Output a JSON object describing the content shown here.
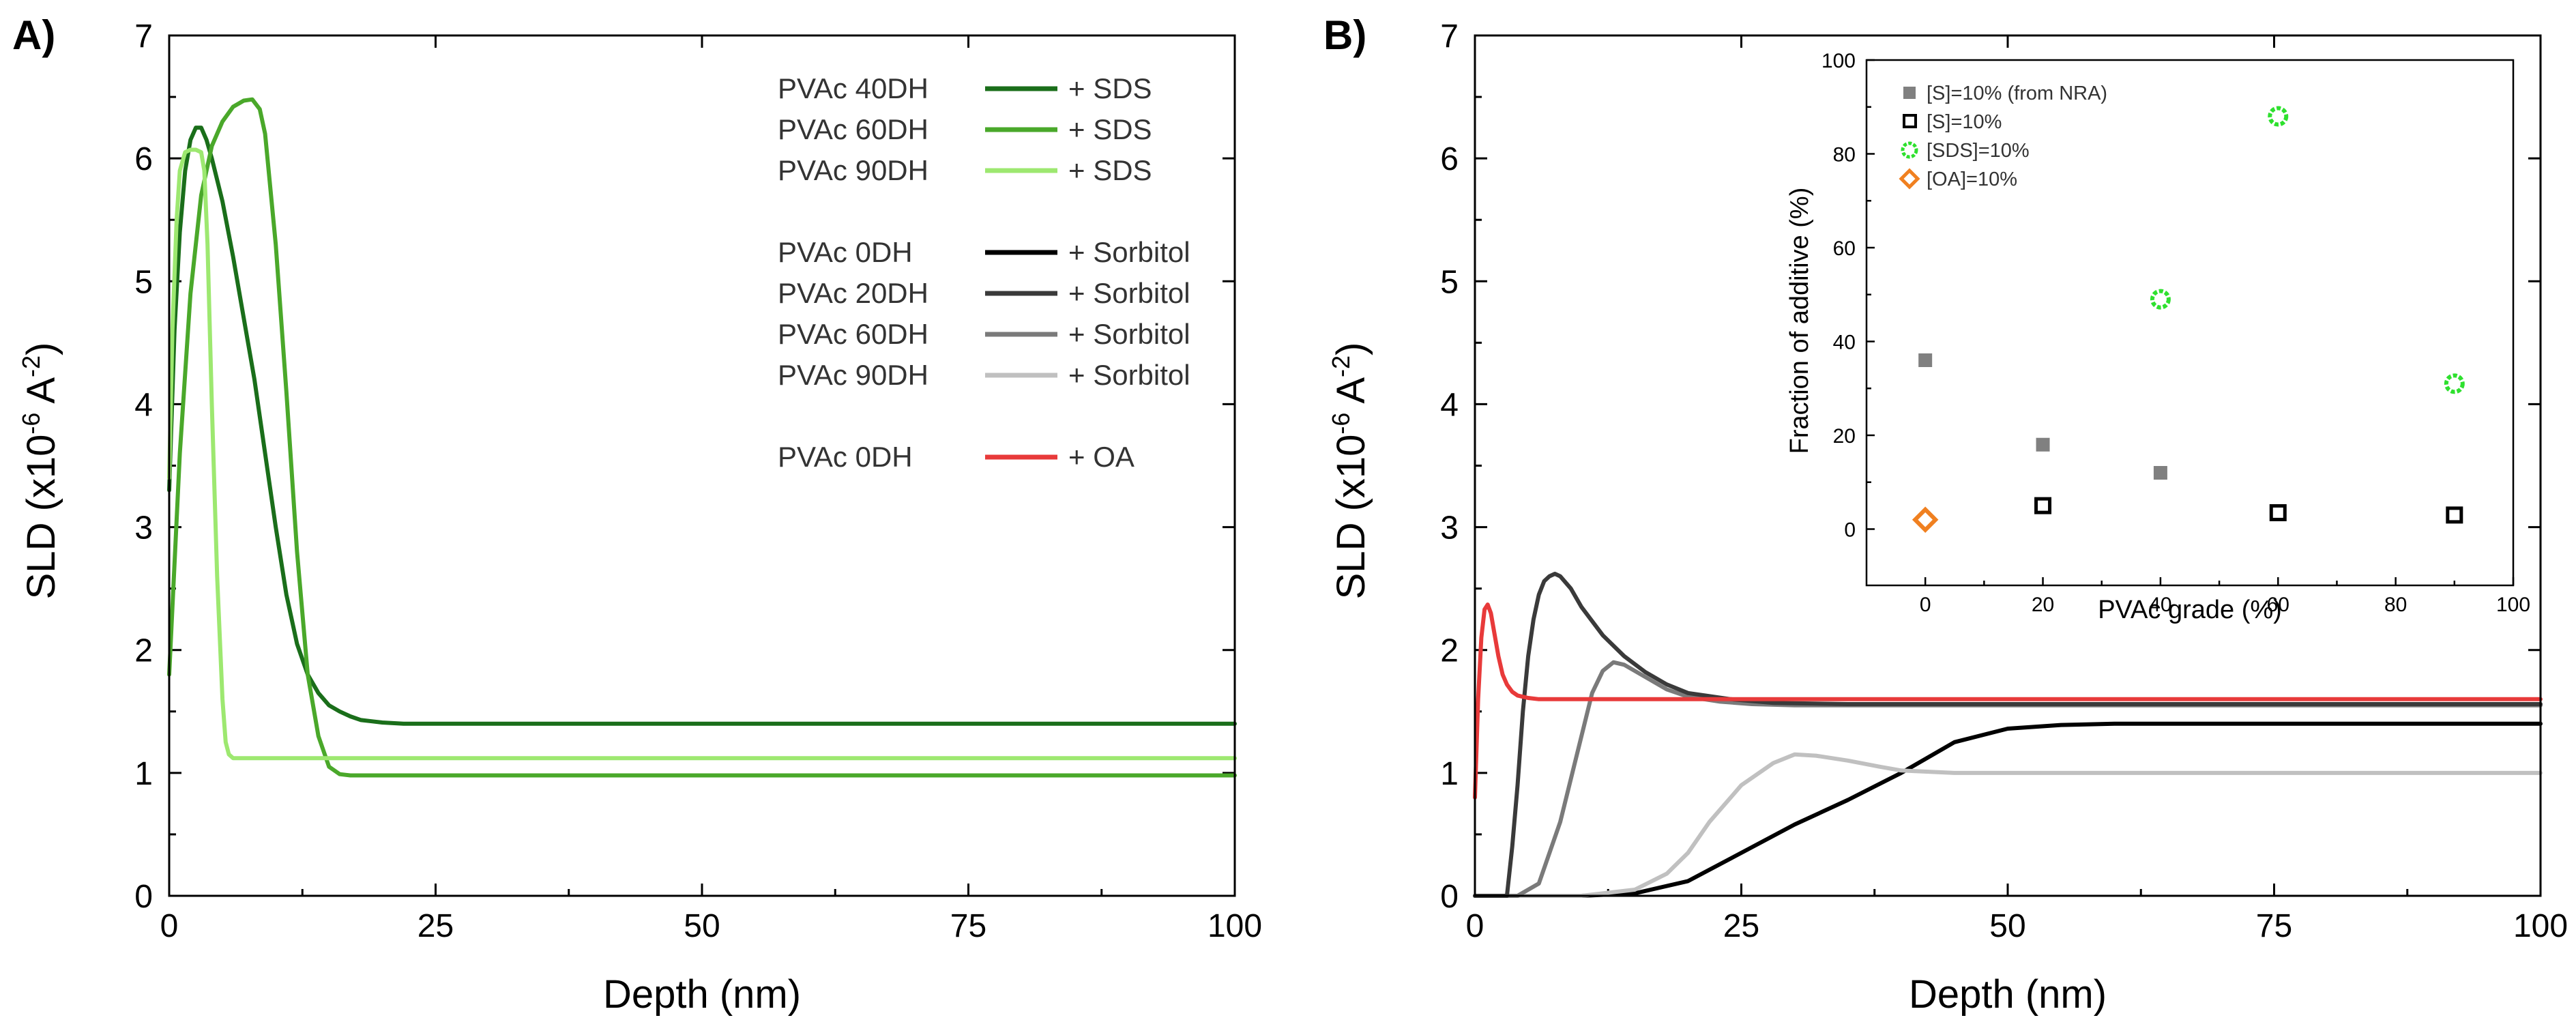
{
  "chart_data": [
    {
      "panel_label": "A)",
      "type": "line",
      "xlabel": "Depth (nm)",
      "ylabel_main": "SLD (x10",
      "ylabel_sup1": "-6",
      "ylabel_mid": " A",
      "ylabel_sup2": "-2",
      "ylabel_end": ")",
      "xlim": [
        0,
        100
      ],
      "ylim": [
        0,
        7
      ],
      "xticks": [
        0,
        25,
        50,
        75,
        100
      ],
      "yticks": [
        0,
        1,
        2,
        3,
        4,
        5,
        6,
        7
      ],
      "legend": [
        {
          "sample": "PVAc 40DH",
          "additive": "+ SDS",
          "color": "#1a6e1a"
        },
        {
          "sample": "PVAc 60DH",
          "additive": "+ SDS",
          "color": "#4aa82a"
        },
        {
          "sample": "PVAc 90DH",
          "additive": "+ SDS",
          "color": "#9de870"
        },
        {
          "sample": "PVAc 0DH",
          "additive": "+ Sorbitol",
          "color": "#000000"
        },
        {
          "sample": "PVAc 20DH",
          "additive": "+ Sorbitol",
          "color": "#3a3a3a"
        },
        {
          "sample": "PVAc 60DH",
          "additive": "+ Sorbitol",
          "color": "#7a7a7a"
        },
        {
          "sample": "PVAc 90DH",
          "additive": "+ Sorbitol",
          "color": "#c0c0c0"
        },
        {
          "sample": "PVAc 0DH",
          "additive": "+ OA",
          "color": "#e83a3a"
        }
      ],
      "series": [
        {
          "name": "PVAc 40DH + SDS",
          "color": "#1a6e1a",
          "x": [
            0,
            0.5,
            1,
            1.5,
            2,
            2.5,
            3,
            3.5,
            4,
            5,
            6,
            7,
            8,
            9,
            10,
            11,
            12,
            13,
            14,
            15,
            16,
            17,
            18,
            19,
            20,
            22,
            25,
            30,
            50,
            75,
            100
          ],
          "y": [
            3.3,
            4.6,
            5.4,
            5.9,
            6.15,
            6.25,
            6.25,
            6.15,
            6.0,
            5.65,
            5.2,
            4.7,
            4.2,
            3.6,
            3.0,
            2.45,
            2.05,
            1.8,
            1.65,
            1.55,
            1.5,
            1.46,
            1.43,
            1.42,
            1.41,
            1.4,
            1.4,
            1.4,
            1.4,
            1.4,
            1.4
          ]
        },
        {
          "name": "PVAc 60DH + SDS",
          "color": "#4aa82a",
          "x": [
            0,
            1,
            2,
            3,
            4,
            5,
            6,
            7,
            7.8,
            8.5,
            9,
            10,
            11,
            12,
            13,
            14,
            15,
            16,
            17,
            18,
            20,
            25,
            50,
            75,
            100
          ],
          "y": [
            1.8,
            3.6,
            4.9,
            5.7,
            6.1,
            6.3,
            6.42,
            6.47,
            6.48,
            6.4,
            6.2,
            5.3,
            4.1,
            2.8,
            1.8,
            1.3,
            1.05,
            0.99,
            0.98,
            0.98,
            0.98,
            0.98,
            0.98,
            0.98,
            0.98
          ]
        },
        {
          "name": "PVAc 90DH + SDS",
          "color": "#9de870",
          "x": [
            0,
            0.3,
            0.7,
            1,
            1.5,
            2,
            2.5,
            3,
            3.3,
            3.6,
            4,
            4.5,
            5,
            5.3,
            5.6,
            6,
            7,
            10,
            25,
            50,
            75,
            100
          ],
          "y": [
            3.4,
            4.6,
            5.5,
            5.9,
            6.05,
            6.07,
            6.07,
            6.05,
            5.9,
            5.3,
            4.0,
            2.6,
            1.6,
            1.25,
            1.15,
            1.12,
            1.12,
            1.12,
            1.12,
            1.12,
            1.12,
            1.12
          ]
        }
      ]
    },
    {
      "panel_label": "B)",
      "type": "line",
      "xlabel": "Depth (nm)",
      "ylabel_main": "SLD (x10",
      "ylabel_sup1": "-6",
      "ylabel_mid": " A",
      "ylabel_sup2": "-2",
      "ylabel_end": ")",
      "xlim": [
        0,
        100
      ],
      "ylim": [
        0,
        7
      ],
      "xticks": [
        0,
        25,
        50,
        75,
        100
      ],
      "yticks": [
        0,
        1,
        2,
        3,
        4,
        5,
        6,
        7
      ],
      "series": [
        {
          "name": "PVAc 0DH + Sorbitol",
          "color": "#000000",
          "x": [
            0,
            10,
            15,
            20,
            25,
            30,
            35,
            40,
            45,
            50,
            55,
            60,
            100
          ],
          "y": [
            0,
            0,
            0.02,
            0.12,
            0.35,
            0.58,
            0.78,
            1.0,
            1.25,
            1.36,
            1.39,
            1.4,
            1.4
          ]
        },
        {
          "name": "PVAc 90DH + Sorbitol",
          "color": "#c0c0c0",
          "x": [
            0,
            10,
            15,
            18,
            20,
            22,
            25,
            28,
            30,
            32,
            35,
            38,
            40,
            45,
            50,
            100
          ],
          "y": [
            0,
            0,
            0.05,
            0.18,
            0.35,
            0.6,
            0.9,
            1.08,
            1.15,
            1.14,
            1.1,
            1.05,
            1.02,
            1.0,
            1.0,
            1.0
          ]
        },
        {
          "name": "PVAc 60DH + Sorbitol",
          "color": "#7a7a7a",
          "x": [
            0,
            4,
            6,
            8,
            10,
            11,
            12,
            13,
            14,
            16,
            18,
            20,
            23,
            26,
            30,
            100
          ],
          "y": [
            0,
            0,
            0.1,
            0.6,
            1.3,
            1.65,
            1.83,
            1.9,
            1.88,
            1.78,
            1.68,
            1.62,
            1.58,
            1.56,
            1.55,
            1.55
          ]
        },
        {
          "name": "PVAc 20DH + Sorbitol",
          "color": "#3a3a3a",
          "x": [
            0,
            3,
            3.5,
            4,
            4.5,
            5,
            5.5,
            6,
            6.5,
            7,
            7.5,
            8,
            9,
            10,
            12,
            14,
            16,
            18,
            20,
            24,
            28,
            35,
            100
          ],
          "y": [
            0,
            0,
            0.4,
            0.9,
            1.5,
            1.95,
            2.25,
            2.45,
            2.56,
            2.6,
            2.62,
            2.6,
            2.5,
            2.35,
            2.12,
            1.95,
            1.82,
            1.72,
            1.65,
            1.6,
            1.57,
            1.56,
            1.56
          ]
        },
        {
          "name": "PVAc 0DH + OA",
          "color": "#e83a3a",
          "x": [
            0,
            0.3,
            0.6,
            0.9,
            1.2,
            1.5,
            1.8,
            2.2,
            2.6,
            3,
            3.5,
            4,
            5,
            6,
            8,
            10,
            100
          ],
          "y": [
            0.8,
            1.6,
            2.1,
            2.33,
            2.37,
            2.3,
            2.15,
            1.95,
            1.8,
            1.72,
            1.66,
            1.63,
            1.61,
            1.6,
            1.6,
            1.6,
            1.6
          ]
        }
      ],
      "inset": {
        "type": "scatter",
        "xlabel": "PVAc grade (%)",
        "ylabel": "Fraction of additive (%)",
        "xlim": [
          -10,
          100
        ],
        "ylim": [
          -12,
          100
        ],
        "xticks": [
          0,
          20,
          40,
          60,
          80,
          100
        ],
        "yticks": [
          0,
          20,
          40,
          60,
          80,
          100
        ],
        "series": [
          {
            "name": "[S]=10% (from NRA)",
            "marker": "filled-square",
            "color": "#808080",
            "x": [
              0,
              20,
              40
            ],
            "y": [
              36,
              18,
              12
            ]
          },
          {
            "name": "[S]=10%",
            "marker": "open-square",
            "color": "#000000",
            "x": [
              20,
              60,
              90
            ],
            "y": [
              5,
              3.5,
              3
            ]
          },
          {
            "name": "[SDS]=10%",
            "marker": "open-circle",
            "color": "#2ee02e",
            "x": [
              40,
              60,
              90
            ],
            "y": [
              49,
              88,
              31
            ]
          },
          {
            "name": "[OA]=10%",
            "marker": "open-diamond",
            "color": "#f08020",
            "x": [
              0
            ],
            "y": [
              2
            ]
          }
        ]
      }
    }
  ]
}
